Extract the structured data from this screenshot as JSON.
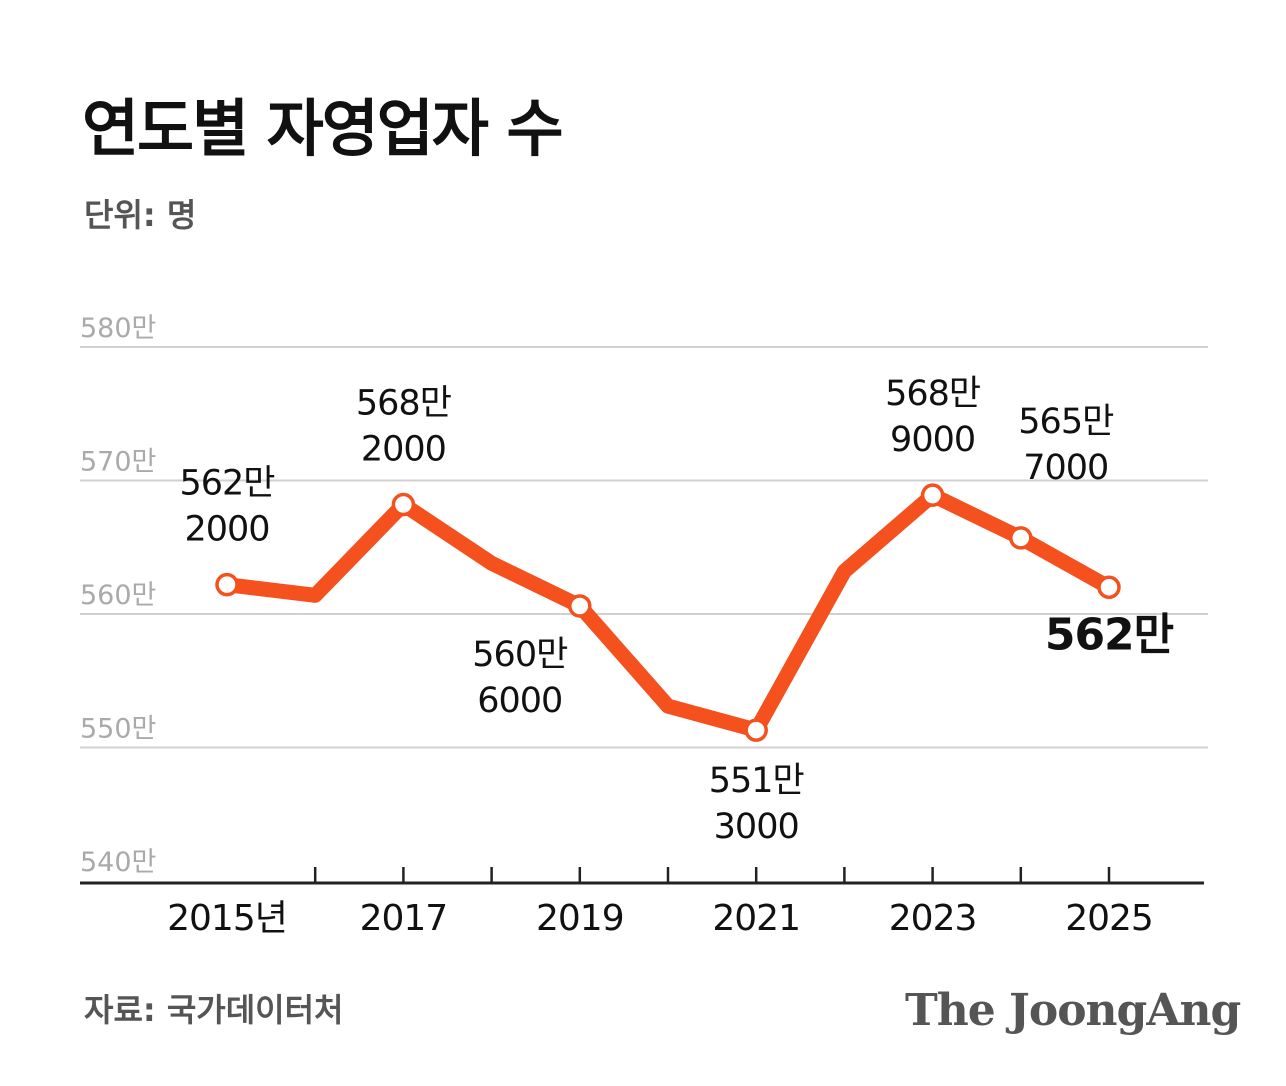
{
  "title": "연도별 자영업자 수",
  "unit": "단위: 명",
  "source": "자료: 국가데이터처",
  "logo": "The JoongAng",
  "colors": {
    "line": "#f4511e",
    "grid": "#d0d0d0",
    "axis": "#222222"
  },
  "chart_data": {
    "type": "line",
    "title": "연도별 자영업자 수",
    "ylabel": "단위: 명",
    "xlabel": "",
    "x": [
      2015,
      2016,
      2017,
      2018,
      2019,
      2020,
      2021,
      2022,
      2023,
      2024,
      2025
    ],
    "x_tick_labels": [
      {
        "x": 2015,
        "label": "2015년"
      },
      {
        "x": 2017,
        "label": "2017"
      },
      {
        "x": 2019,
        "label": "2019"
      },
      {
        "x": 2021,
        "label": "2021"
      },
      {
        "x": 2023,
        "label": "2023"
      },
      {
        "x": 2025,
        "label": "2025"
      }
    ],
    "ylim": [
      540,
      580
    ],
    "y_ticks": [
      {
        "value": 540,
        "label": "540만"
      },
      {
        "value": 550,
        "label": "550만"
      },
      {
        "value": 560,
        "label": "560만"
      },
      {
        "value": 570,
        "label": "570만"
      },
      {
        "value": 580,
        "label": "580만"
      }
    ],
    "y_unit": "만 명",
    "series": [
      {
        "name": "자영업자 수",
        "values": [
          562.2,
          561.4,
          568.2,
          563.8,
          560.6,
          553.1,
          551.3,
          563.2,
          568.9,
          565.7,
          562.0
        ]
      }
    ],
    "data_labels": [
      {
        "x": 2015,
        "lines": [
          "562만",
          "2000"
        ],
        "position": "above"
      },
      {
        "x": 2017,
        "lines": [
          "568만",
          "2000"
        ],
        "position": "above"
      },
      {
        "x": 2019,
        "lines": [
          "560만",
          "6000"
        ],
        "position": "below-left"
      },
      {
        "x": 2021,
        "lines": [
          "551만",
          "3000"
        ],
        "position": "below"
      },
      {
        "x": 2023,
        "lines": [
          "568만",
          "9000"
        ],
        "position": "above"
      },
      {
        "x": 2024,
        "lines": [
          "565만",
          "7000"
        ],
        "position": "above-right"
      },
      {
        "x": 2025,
        "lines": [
          "562만"
        ],
        "position": "below",
        "emphasis": true
      }
    ],
    "markers_at": [
      2015,
      2017,
      2019,
      2021,
      2023,
      2024,
      2025
    ],
    "grid": true
  }
}
